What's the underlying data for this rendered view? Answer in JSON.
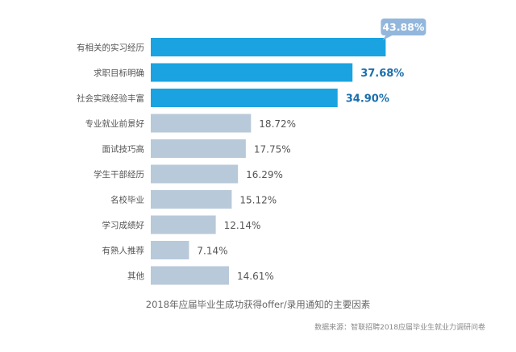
{
  "chart_data": {
    "type": "bar",
    "orientation": "horizontal",
    "categories": [
      "有相关的实习经历",
      "求职目标明确",
      "社会实践经验丰富",
      "专业就业前景好",
      "面试技巧高",
      "学生干部经历",
      "名校毕业",
      "学习成绩好",
      "有熟人推荐",
      "其他"
    ],
    "values": [
      43.88,
      37.68,
      34.9,
      18.72,
      17.75,
      16.29,
      15.12,
      12.14,
      7.14,
      14.61
    ],
    "value_labels": [
      "43.88%",
      "37.68%",
      "34.90%",
      "18.72%",
      "17.75%",
      "16.29%",
      "15.12%",
      "12.14%",
      "7.14%",
      "14.61%"
    ],
    "highlight_count": 3,
    "xlim": [
      0,
      50
    ],
    "grid": false,
    "legend": "none",
    "colors": {
      "highlight": "#1aa3e0",
      "normal": "#b8c9d9",
      "badge": "#93b7dc",
      "highlight_text": "#1a6fae"
    }
  },
  "caption": "2018年应届毕业生成功获得offer/录用通知的主要因素",
  "source": "数据来源：智联招聘2018应届毕业生就业力调研问卷"
}
